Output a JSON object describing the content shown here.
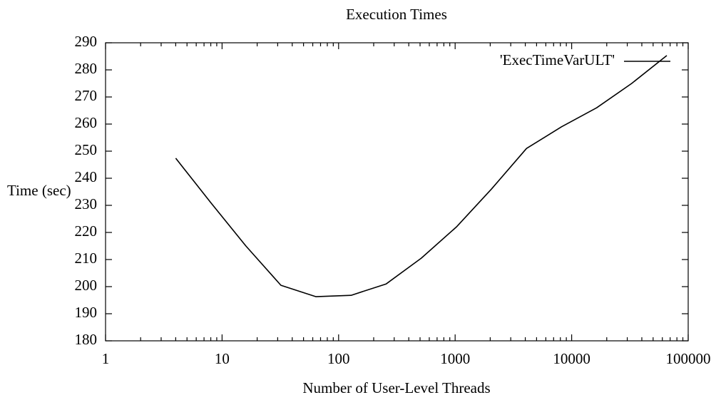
{
  "chart_data": {
    "type": "line",
    "title": "Execution Times",
    "xlabel": "Number of User-Level Threads",
    "ylabel": "Time (sec)",
    "x": [
      4,
      8,
      16,
      32,
      64,
      128,
      256,
      512,
      1024,
      2048,
      4096,
      8192,
      16384,
      32768,
      65536
    ],
    "series": [
      {
        "name": "'ExecTimeVarULT'",
        "color": "#000000",
        "values": [
          247.4,
          231,
          215,
          200.5,
          196.3,
          196.8,
          201,
          210.5,
          222,
          236,
          251,
          259,
          266,
          275,
          285.3
        ]
      }
    ],
    "xlog": true,
    "xlim": [
      1,
      100000
    ],
    "xticks": [
      1,
      10,
      100,
      1000,
      10000,
      100000
    ],
    "ylim": [
      180,
      290
    ],
    "yticks": [
      180,
      190,
      200,
      210,
      220,
      230,
      240,
      250,
      260,
      270,
      280,
      290
    ],
    "grid": false,
    "legend": "top-right"
  }
}
